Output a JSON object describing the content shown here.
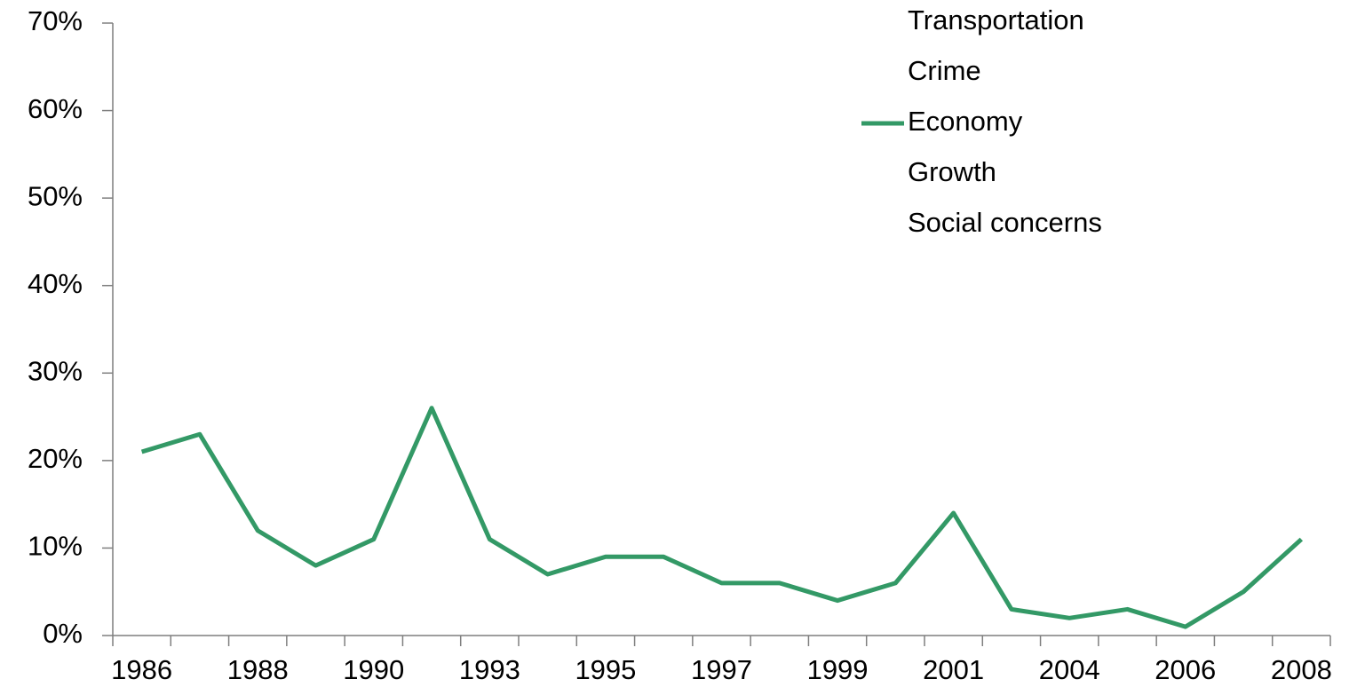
{
  "chart_data": {
    "type": "line",
    "categories": [
      "1986",
      null,
      "1988",
      null,
      "1990",
      null,
      "1993",
      null,
      "1995",
      null,
      "1997",
      null,
      "1999",
      null,
      "2001",
      null,
      "2004",
      null,
      "2006",
      null,
      "2008"
    ],
    "series": [
      {
        "name": "Transportation",
        "values": [
          null,
          null,
          null,
          null,
          null,
          null,
          null,
          null,
          null,
          null,
          null,
          null,
          null,
          null,
          null,
          null,
          null,
          null,
          null,
          null,
          null
        ]
      },
      {
        "name": "Crime",
        "values": [
          null,
          null,
          null,
          null,
          null,
          null,
          null,
          null,
          null,
          null,
          null,
          null,
          null,
          null,
          null,
          null,
          null,
          null,
          null,
          null,
          null
        ]
      },
      {
        "name": "Economy",
        "color": "#339966",
        "values": [
          21,
          23,
          12,
          8,
          11,
          26,
          11,
          7,
          9,
          9,
          6,
          6,
          4,
          6,
          14,
          3,
          2,
          3,
          1,
          5,
          11
        ]
      },
      {
        "name": "Growth",
        "values": [
          null,
          null,
          null,
          null,
          null,
          null,
          null,
          null,
          null,
          null,
          null,
          null,
          null,
          null,
          null,
          null,
          null,
          null,
          null,
          null,
          null
        ]
      },
      {
        "name": "Social concerns",
        "values": [
          null,
          null,
          null,
          null,
          null,
          null,
          null,
          null,
          null,
          null,
          null,
          null,
          null,
          null,
          null,
          null,
          null,
          null,
          null,
          null,
          null
        ]
      }
    ],
    "ylim": [
      0,
      70
    ],
    "yticks": [
      {
        "value": 0,
        "label": "0%"
      },
      {
        "value": 10,
        "label": "10%"
      },
      {
        "value": 20,
        "label": "20%"
      },
      {
        "value": 30,
        "label": "30%"
      },
      {
        "value": 40,
        "label": "40%"
      },
      {
        "value": 50,
        "label": "50%"
      },
      {
        "value": 60,
        "label": "60%"
      },
      {
        "value": 70,
        "label": "70%"
      }
    ],
    "grid": false
  }
}
